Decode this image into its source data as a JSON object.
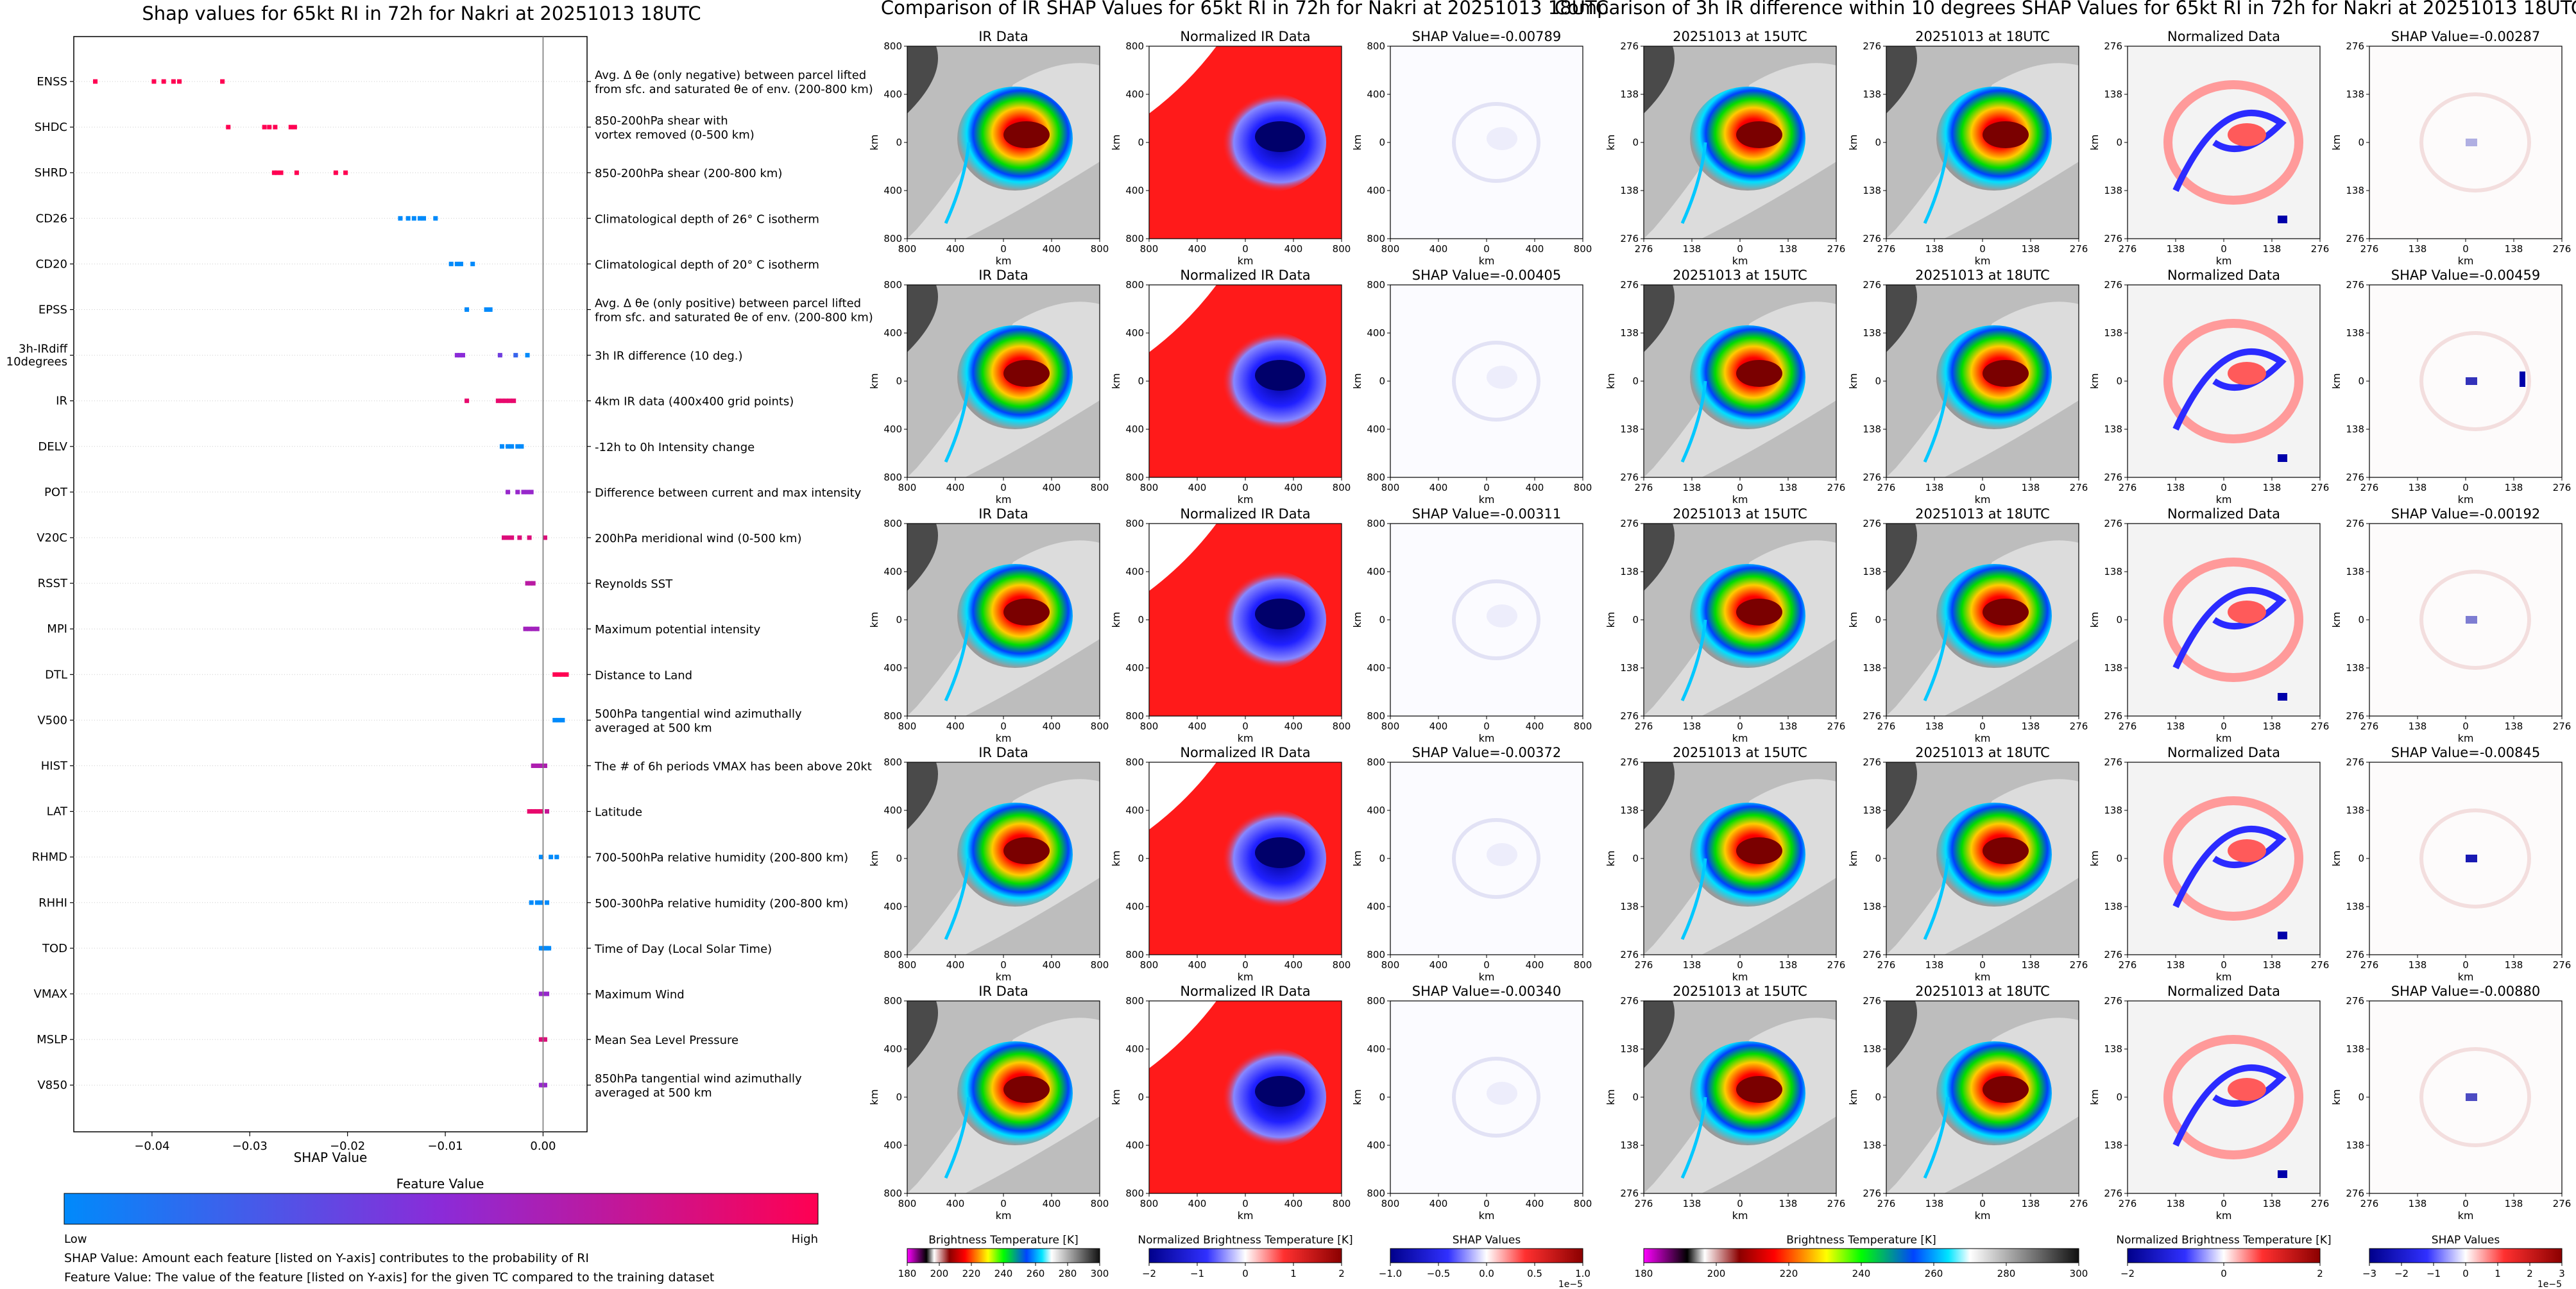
{
  "colors": {
    "low": "#008afb",
    "mid": "#8b2bd8",
    "high": "#ff0052",
    "ir_gray_warm": "#e0e0e0",
    "ir_gray_cold": "#303030",
    "norm_red": "#ff0000",
    "norm_blue": "#0000ff"
  },
  "left_title": "Shap values for 65kt RI in 72h for Nakri at 20251013 18UTC",
  "mid_title": "Comparison of IR SHAP Values for 65kt RI in 72h for Nakri at 20251013 18UTC",
  "right_title": "Comparison of 3h IR difference within 10 degrees SHAP Values for 65kt RI in 72h for Nakri at 20251013 18UTC",
  "chart_data": [
    {
      "type": "scatter",
      "title": "Shap values for 65kt RI in 72h for Nakri at 20251013 18UTC",
      "xlabel": "SHAP Value",
      "xlim": [
        -0.048,
        0.0045
      ],
      "xticks": [
        -0.04,
        -0.03,
        -0.02,
        -0.01,
        0.0
      ],
      "xtick_labels": [
        "−0.04",
        "−0.03",
        "−0.02",
        "−0.01",
        "0.00"
      ],
      "grid": false,
      "colorbar": {
        "title": "Feature Value",
        "low_label": "Low",
        "high_label": "High"
      },
      "features": [
        {
          "name": "ENSS",
          "desc": [
            "Avg. Δ θe (only negative) between parcel lifted",
            "from sfc. and saturated θe of env. (200-800 km)"
          ],
          "points": [
            [
              -0.0458,
              1.0
            ],
            [
              -0.0398,
              1.0
            ],
            [
              -0.0388,
              1.0
            ],
            [
              -0.0378,
              1.0
            ],
            [
              -0.0372,
              1.0
            ],
            [
              -0.0328,
              1.0
            ]
          ]
        },
        {
          "name": "SHDC",
          "desc": [
            "850-200hPa shear with",
            "vortex removed (0-500 km)"
          ],
          "points": [
            [
              -0.0322,
              1.0
            ],
            [
              -0.0285,
              1.0
            ],
            [
              -0.028,
              1.0
            ],
            [
              -0.0274,
              1.0
            ],
            [
              -0.0258,
              1.0
            ],
            [
              -0.0254,
              1.0
            ]
          ]
        },
        {
          "name": "SHRD",
          "desc": [
            "850-200hPa shear (200-800 km)"
          ],
          "points": [
            [
              -0.0275,
              1.0
            ],
            [
              -0.0272,
              1.0
            ],
            [
              -0.0268,
              1.0
            ],
            [
              -0.0252,
              1.0
            ],
            [
              -0.0212,
              1.0
            ],
            [
              -0.0202,
              1.0
            ]
          ]
        },
        {
          "name": "CD26",
          "desc": [
            "Climatological depth of 26° C isotherm"
          ],
          "points": [
            [
              -0.0146,
              0.0
            ],
            [
              -0.0138,
              0.0
            ],
            [
              -0.0132,
              0.0
            ],
            [
              -0.0126,
              0.0
            ],
            [
              -0.0122,
              0.0
            ],
            [
              -0.011,
              0.0
            ]
          ]
        },
        {
          "name": "CD20",
          "desc": [
            "Climatological depth of 20° C isotherm"
          ],
          "points": [
            [
              -0.0094,
              0.0
            ],
            [
              -0.0088,
              0.0
            ],
            [
              -0.0084,
              0.0
            ],
            [
              -0.0072,
              0.0
            ]
          ]
        },
        {
          "name": "EPSS",
          "desc": [
            "Avg. Δ θe (only positive) between parcel lifted",
            "from sfc. and saturated θe of env. (200-800 km)"
          ],
          "points": [
            [
              -0.0078,
              0.0
            ],
            [
              -0.0058,
              0.0
            ],
            [
              -0.0054,
              0.0
            ]
          ]
        },
        {
          "name": "3h-IRdiff 10degrees",
          "desc": [
            "3h IR difference (10 deg.)"
          ],
          "points": [
            [
              -0.0088,
              0.5
            ],
            [
              -0.0085,
              0.5
            ],
            [
              -0.0082,
              0.5
            ],
            [
              -0.0044,
              0.4
            ],
            [
              -0.0028,
              0.2
            ],
            [
              -0.0016,
              0.0
            ]
          ]
        },
        {
          "name": "IR",
          "desc": [
            "4km IR data (400x400 grid points)"
          ],
          "points": [
            [
              -0.0078,
              0.9
            ],
            [
              -0.0046,
              0.9
            ],
            [
              -0.0042,
              0.9
            ],
            [
              -0.0038,
              0.9
            ],
            [
              -0.0034,
              0.9
            ],
            [
              -0.003,
              0.9
            ]
          ]
        },
        {
          "name": "DELV",
          "desc": [
            "-12h to 0h Intensity change"
          ],
          "points": [
            [
              -0.0042,
              0.0
            ],
            [
              -0.0036,
              0.0
            ],
            [
              -0.0032,
              0.0
            ],
            [
              -0.0026,
              0.0
            ],
            [
              -0.0022,
              0.0
            ]
          ]
        },
        {
          "name": "POT",
          "desc": [
            "Difference between current and max intensity"
          ],
          "points": [
            [
              -0.0036,
              0.55
            ],
            [
              -0.0026,
              0.55
            ],
            [
              -0.002,
              0.55
            ],
            [
              -0.0016,
              0.55
            ],
            [
              -0.0012,
              0.55
            ]
          ]
        },
        {
          "name": "V20C",
          "desc": [
            "200hPa meridional wind (0-500 km)"
          ],
          "points": [
            [
              -0.004,
              0.85
            ],
            [
              -0.0036,
              0.85
            ],
            [
              -0.0032,
              0.85
            ],
            [
              -0.0024,
              0.85
            ],
            [
              -0.0014,
              0.85
            ],
            [
              0.0002,
              0.85
            ]
          ]
        },
        {
          "name": "RSST",
          "desc": [
            "Reynolds SST"
          ],
          "points": [
            [
              -0.0016,
              0.7
            ],
            [
              -0.0013,
              0.7
            ],
            [
              -0.001,
              0.7
            ]
          ]
        },
        {
          "name": "MPI",
          "desc": [
            "Maximum potential intensity"
          ],
          "points": [
            [
              -0.0018,
              0.6
            ],
            [
              -0.0014,
              0.6
            ],
            [
              -0.001,
              0.6
            ],
            [
              -0.0006,
              0.6
            ]
          ]
        },
        {
          "name": "DTL",
          "desc": [
            "Distance to Land"
          ],
          "points": [
            [
              0.0012,
              1.0
            ],
            [
              0.0016,
              1.0
            ],
            [
              0.002,
              1.0
            ],
            [
              0.0024,
              1.0
            ]
          ]
        },
        {
          "name": "V500",
          "desc": [
            "500hPa tangential wind azimuthally",
            "averaged at 500 km"
          ],
          "points": [
            [
              0.0012,
              0.0
            ],
            [
              0.0016,
              0.0
            ],
            [
              0.002,
              0.0
            ]
          ]
        },
        {
          "name": "HIST",
          "desc": [
            "The # of 6h periods VMAX has been above 20kt"
          ],
          "points": [
            [
              -0.001,
              0.65
            ],
            [
              -0.0006,
              0.65
            ],
            [
              -0.0002,
              0.65
            ],
            [
              0.0002,
              0.65
            ]
          ]
        },
        {
          "name": "LAT",
          "desc": [
            "Latitude"
          ],
          "points": [
            [
              -0.0014,
              0.9
            ],
            [
              -0.001,
              0.9
            ],
            [
              -0.0006,
              0.9
            ],
            [
              -0.0002,
              0.9
            ],
            [
              0.0004,
              0.75
            ]
          ]
        },
        {
          "name": "RHMD",
          "desc": [
            "700-500hPa relative humidity (200-800 km)"
          ],
          "points": [
            [
              -0.0002,
              0.0
            ],
            [
              0.0008,
              0.0
            ],
            [
              0.0014,
              0.0
            ]
          ]
        },
        {
          "name": "RHHI",
          "desc": [
            "500-300hPa relative humidity (200-800 km)"
          ],
          "points": [
            [
              -0.0012,
              0.0
            ],
            [
              -0.0006,
              0.0
            ],
            [
              -0.0002,
              0.0
            ],
            [
              0.0004,
              0.0
            ]
          ]
        },
        {
          "name": "TOD",
          "desc": [
            "Time of Day (Local Solar Time)"
          ],
          "points": [
            [
              -0.0002,
              0.0
            ],
            [
              0.0,
              0.0
            ],
            [
              0.0002,
              0.0
            ],
            [
              0.0004,
              0.0
            ],
            [
              0.0006,
              0.0
            ]
          ]
        },
        {
          "name": "VMAX",
          "desc": [
            "Maximum Wind"
          ],
          "points": [
            [
              -0.0002,
              0.55
            ],
            [
              0.0,
              0.55
            ],
            [
              0.0002,
              0.55
            ],
            [
              0.0004,
              0.55
            ]
          ]
        },
        {
          "name": "MSLP",
          "desc": [
            "Mean Sea Level Pressure"
          ],
          "points": [
            [
              -0.0002,
              0.85
            ],
            [
              0.0,
              0.85
            ],
            [
              0.0002,
              0.85
            ]
          ]
        },
        {
          "name": "V850",
          "desc": [
            "850hPa tangential wind azimuthally",
            "averaged at 500 km"
          ],
          "points": [
            [
              -0.0002,
              0.55
            ],
            [
              0.0,
              0.55
            ],
            [
              0.0002,
              0.55
            ]
          ]
        }
      ]
    },
    {
      "type": "heatmap",
      "title": "Comparison of IR SHAP Values for 65kt RI in 72h for Nakri at 20251013 18UTC",
      "column_titles": [
        "IR Data",
        "Normalized IR Data"
      ],
      "shap_titles": [
        "SHAP Value=-0.00789",
        "SHAP Value=-0.00405",
        "SHAP Value=-0.00311",
        "SHAP Value=-0.00372",
        "SHAP Value=-0.00340"
      ],
      "xlabel": "km",
      "ylabel": "km",
      "tick_labels": [
        "800",
        "400",
        "0",
        "400",
        "800"
      ],
      "colorbars": [
        {
          "label": "Brightness Temperature [K]",
          "ticks": [
            "180",
            "200",
            "220",
            "240",
            "260",
            "280",
            "300"
          ]
        },
        {
          "label": "Normalized Brightness Temperature [K]",
          "ticks": [
            "−2",
            "−1",
            "0",
            "1",
            "2"
          ]
        },
        {
          "label": "SHAP Values",
          "ticks": [
            "−1.0",
            "−0.5",
            "0.0",
            "0.5",
            "1.0"
          ],
          "exponent": "1e−5"
        }
      ]
    },
    {
      "type": "heatmap",
      "title": "Comparison of 3h IR difference within 10 degrees SHAP Values for 65kt RI in 72h for Nakri at 20251013 18UTC",
      "column_titles": [
        "20251013 at 15UTC",
        "20251013 at 18UTC",
        "Normalized Data"
      ],
      "shap_titles": [
        "SHAP Value=-0.00287",
        "SHAP Value=-0.00459",
        "SHAP Value=-0.00192",
        "SHAP Value=-0.00845",
        "SHAP Value=-0.00880"
      ],
      "xlabel": "km",
      "ylabel": "km",
      "tick_labels": [
        "276",
        "138",
        "0",
        "138",
        "276"
      ],
      "colorbars": [
        {
          "label": "Brightness Temperature [K]",
          "ticks": [
            "180",
            "200",
            "220",
            "240",
            "260",
            "280",
            "300"
          ]
        },
        {
          "label": "Normalized Brightness Temperature [K]",
          "ticks": [
            "−2",
            "0",
            "2"
          ]
        },
        {
          "label": "SHAP Values",
          "ticks": [
            "−3",
            "−2",
            "−1",
            "0",
            "1",
            "2",
            "3"
          ],
          "exponent": "1e−5"
        }
      ]
    }
  ],
  "footer": {
    "line1": "SHAP Value: Amount each feature [listed on Y-axis] contributes to the probability of RI",
    "line2": "Feature Value: The value of the feature [listed on Y-axis] for the given TC compared to the training dataset"
  }
}
